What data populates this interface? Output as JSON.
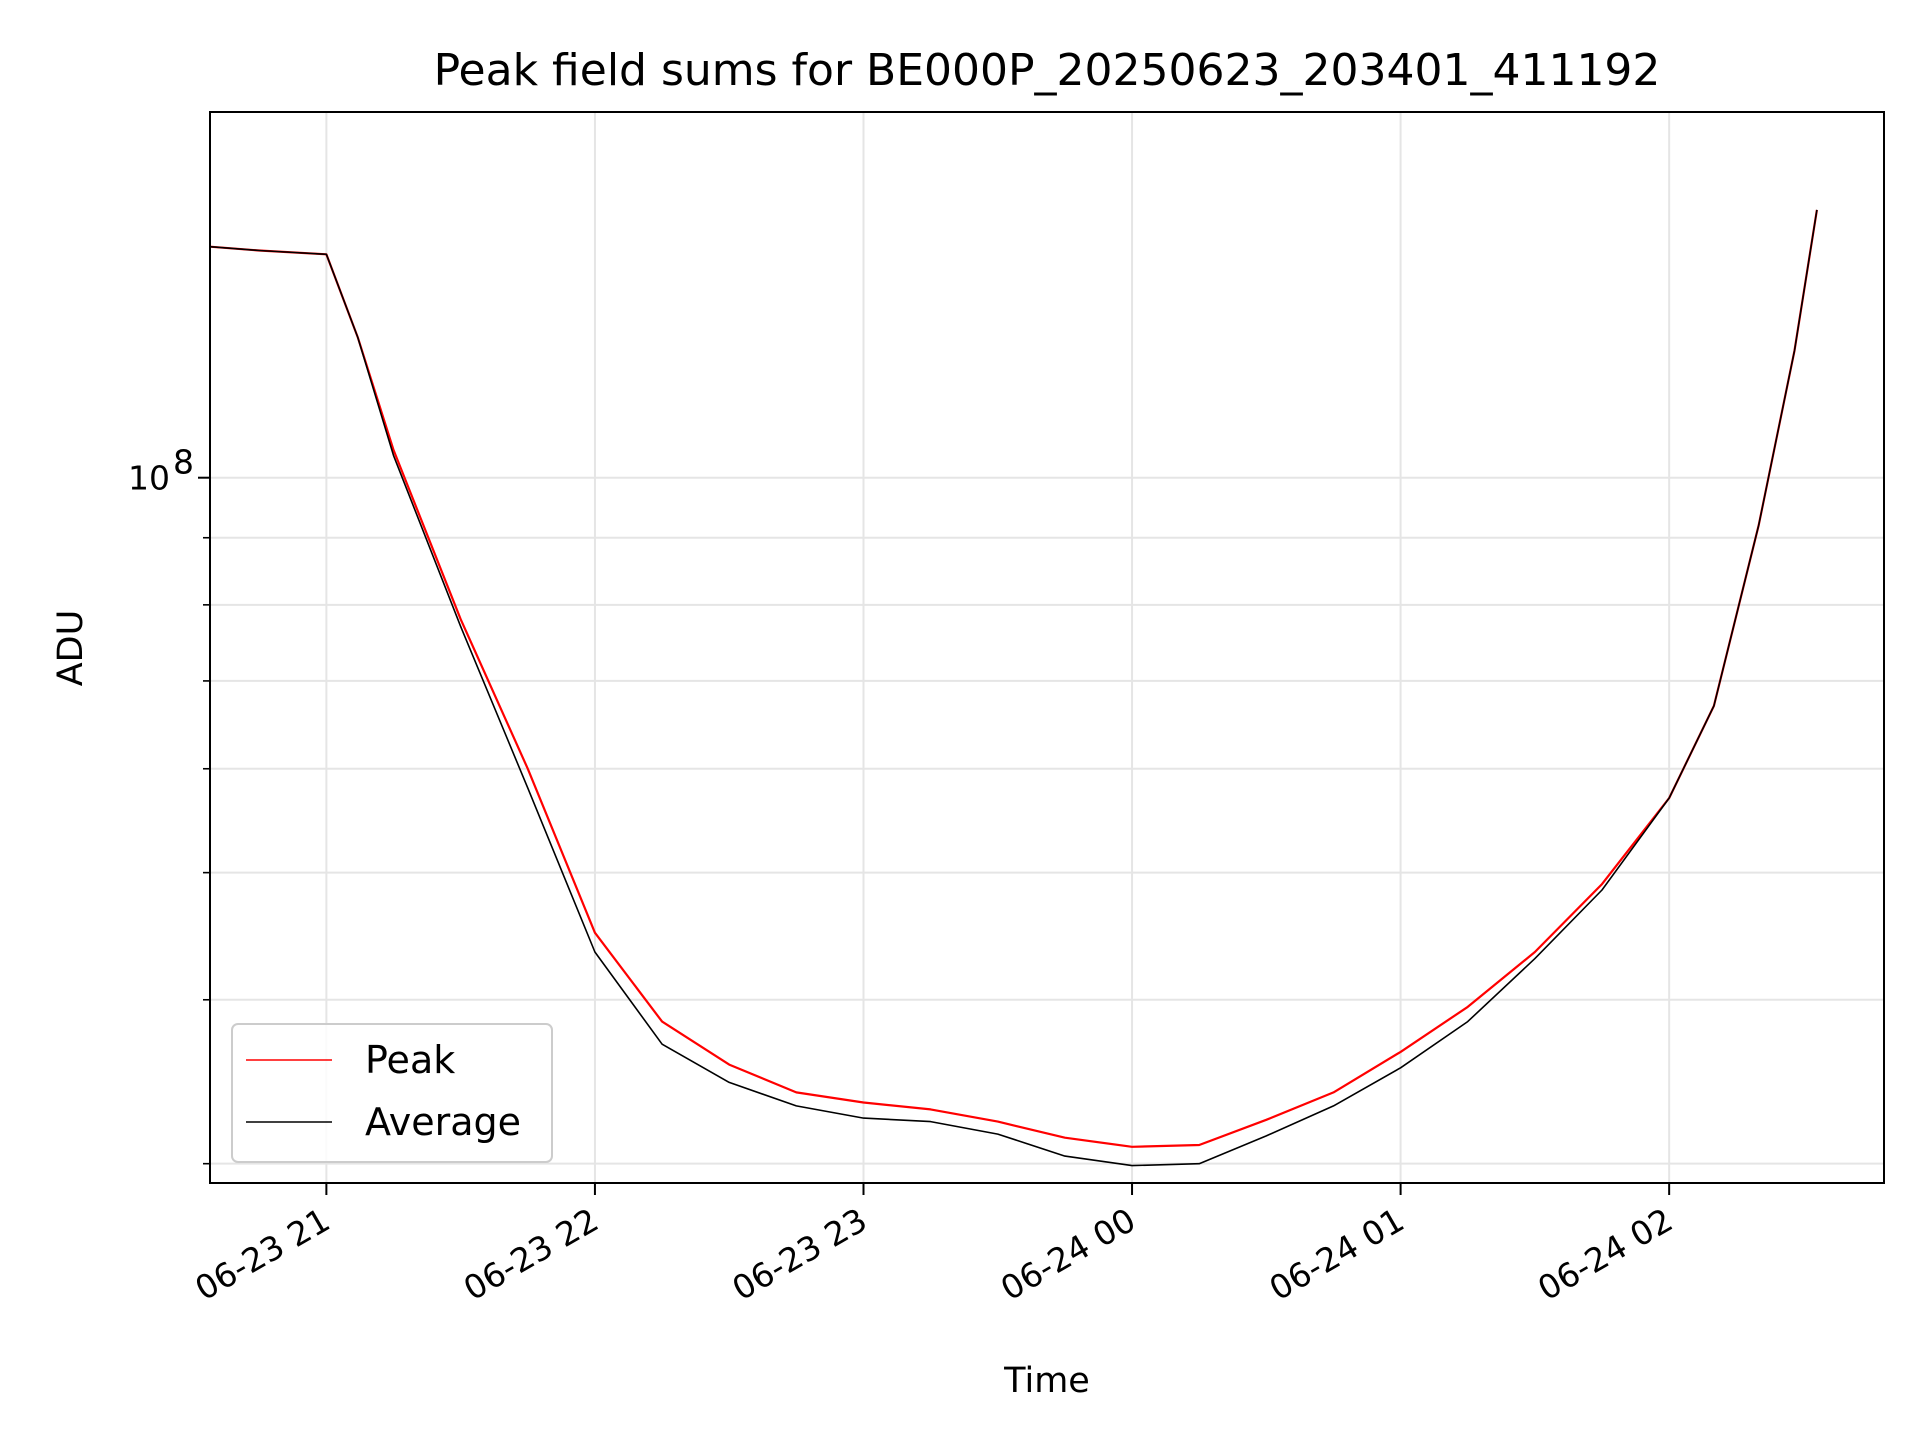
{
  "chart_data": {
    "type": "line",
    "title": "Peak field sums for BE000P_20250623_203401_411192",
    "xlabel": "Time",
    "ylabel": "ADU",
    "y_scale": "log",
    "grid": true,
    "legend_position": "lower-left",
    "x_range": [
      "2025-06-23 20:34",
      "2025-06-24 02:48"
    ],
    "ylim": [
      29000000,
      190000000
    ],
    "x_ticks": [
      {
        "t": "2025-06-23 21:00",
        "label": "06-23 21"
      },
      {
        "t": "2025-06-23 22:00",
        "label": "06-23 22"
      },
      {
        "t": "2025-06-23 23:00",
        "label": "06-23 23"
      },
      {
        "t": "2025-06-24 00:00",
        "label": "06-24 00"
      },
      {
        "t": "2025-06-24 01:00",
        "label": "06-24 01"
      },
      {
        "t": "2025-06-24 02:00",
        "label": "06-24 02"
      }
    ],
    "y_major_ticks": [
      {
        "value": 100000000,
        "label_base": "10",
        "label_exp": "8"
      }
    ],
    "y_minor_ticks": [
      30000000,
      40000000,
      50000000,
      60000000,
      70000000,
      80000000,
      90000000,
      200000000
    ],
    "series": [
      {
        "name": "Peak",
        "color": "#ff0000",
        "x": [
          "2025-06-23 20:34",
          "2025-06-23 20:45",
          "2025-06-23 21:00",
          "2025-06-23 21:07",
          "2025-06-23 21:15",
          "2025-06-23 21:30",
          "2025-06-23 21:45",
          "2025-06-23 22:00",
          "2025-06-23 22:15",
          "2025-06-23 22:30",
          "2025-06-23 22:45",
          "2025-06-23 23:00",
          "2025-06-23 23:15",
          "2025-06-23 23:30",
          "2025-06-23 23:45",
          "2025-06-24 00:00",
          "2025-06-24 00:15",
          "2025-06-24 00:30",
          "2025-06-24 00:45",
          "2025-06-24 01:00",
          "2025-06-24 01:15",
          "2025-06-24 01:30",
          "2025-06-24 01:45",
          "2025-06-24 02:00",
          "2025-06-24 02:10",
          "2025-06-24 02:20",
          "2025-06-24 02:28",
          "2025-06-24 02:33"
        ],
        "y": [
          150000000,
          149000000,
          148000000,
          128000000,
          105000000,
          78000000,
          60000000,
          45000000,
          38500000,
          35700000,
          34000000,
          33400000,
          33000000,
          32300000,
          31400000,
          30900000,
          31000000,
          32400000,
          34000000,
          36500000,
          39500000,
          43500000,
          49000000,
          57000000,
          67000000,
          92000000,
          125000000,
          160000000
        ]
      },
      {
        "name": "Average",
        "color": "#000000",
        "x": [
          "2025-06-23 20:34",
          "2025-06-23 20:45",
          "2025-06-23 21:00",
          "2025-06-23 21:07",
          "2025-06-23 21:15",
          "2025-06-23 21:30",
          "2025-06-23 21:45",
          "2025-06-23 22:00",
          "2025-06-23 22:15",
          "2025-06-23 22:30",
          "2025-06-23 22:45",
          "2025-06-23 23:00",
          "2025-06-23 23:15",
          "2025-06-23 23:30",
          "2025-06-23 23:45",
          "2025-06-24 00:00",
          "2025-06-24 00:15",
          "2025-06-24 00:30",
          "2025-06-24 00:45",
          "2025-06-24 01:00",
          "2025-06-24 01:15",
          "2025-06-24 01:30",
          "2025-06-24 01:45",
          "2025-06-24 02:00",
          "2025-06-24 02:10",
          "2025-06-24 02:20",
          "2025-06-24 02:28",
          "2025-06-24 02:33"
        ],
        "y": [
          150000000,
          149000000,
          148000000,
          128000000,
          104000000,
          77000000,
          58000000,
          43500000,
          37000000,
          34600000,
          33200000,
          32500000,
          32300000,
          31600000,
          30400000,
          29900000,
          30000000,
          31500000,
          33200000,
          35500000,
          38500000,
          43000000,
          48500000,
          57000000,
          67000000,
          92000000,
          125000000,
          160000000
        ]
      }
    ]
  }
}
